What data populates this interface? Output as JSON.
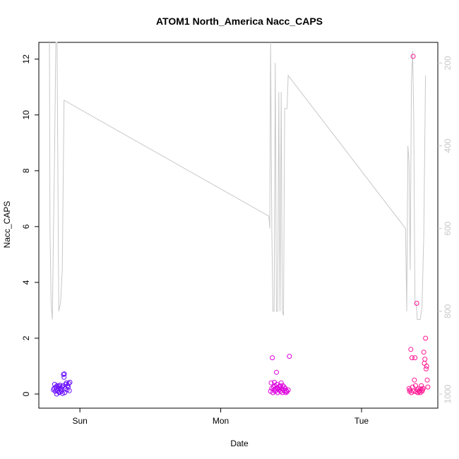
{
  "chart_data": {
    "type": "scatter",
    "title": "ATOM1 North_America Nacc_CAPS",
    "xlabel": "Date",
    "ylabel": "Nacc_CAPS",
    "x_ticks": [
      "Sun",
      "Mon",
      "Tue"
    ],
    "y_ticks": [
      "0",
      "2",
      "4",
      "6",
      "8",
      "10",
      "12"
    ],
    "y2_ticks": [
      "200",
      "400",
      "600",
      "800",
      "1000"
    ],
    "ylim": [
      0,
      12.6
    ],
    "y2lim": [
      1000,
      150
    ],
    "y2_reversed": true,
    "x_axis_hours_from_sat_midnight": [
      17,
      85
    ],
    "colors": {
      "line": "#c8c8c8",
      "axis": "#000000",
      "right_axis": "#c8c8c8"
    },
    "series": [
      {
        "values": [
          [
            19.5,
            0.15
          ],
          [
            19.6,
            0.2
          ],
          [
            19.7,
            0.35
          ],
          [
            19.8,
            0.1
          ],
          [
            19.9,
            0.25
          ],
          [
            20.0,
            0.18
          ],
          [
            20.1,
            0.3
          ],
          [
            20.2,
            0.12
          ],
          [
            20.3,
            0.22
          ],
          [
            20.4,
            0.28
          ],
          [
            20.5,
            0.05
          ],
          [
            20.6,
            0.32
          ],
          [
            20.7,
            0.15
          ],
          [
            20.8,
            0.2
          ],
          [
            20.9,
            0.1
          ],
          [
            21.0,
            0.25
          ],
          [
            21.1,
            0.3
          ],
          [
            21.2,
            0.7
          ],
          [
            21.3,
            0.6
          ],
          [
            21.35,
            0.72
          ],
          [
            21.4,
            0.05
          ],
          [
            21.5,
            0.2
          ],
          [
            21.6,
            0.35
          ],
          [
            21.7,
            0.4
          ],
          [
            21.8,
            0.15
          ],
          [
            21.9,
            0.3
          ],
          [
            22.0,
            0.25
          ],
          [
            22.1,
            0.38
          ],
          [
            22.2,
            0.12
          ],
          [
            22.3,
            0.42
          ],
          [
            20.05,
            0.0
          ],
          [
            20.45,
            0.08
          ],
          [
            21.05,
            0.02
          ]
        ],
        "color": "#6a0dff"
      },
      {
        "values": [
          [
            56.5,
            0.1
          ],
          [
            56.6,
            0.4
          ],
          [
            56.7,
            0.2
          ],
          [
            56.8,
            1.3
          ],
          [
            56.9,
            0.05
          ],
          [
            57.0,
            0.25
          ],
          [
            57.1,
            0.15
          ],
          [
            57.2,
            0.3
          ],
          [
            57.3,
            0.1
          ],
          [
            57.4,
            0.2
          ],
          [
            57.5,
            0.78
          ],
          [
            57.6,
            0.35
          ],
          [
            57.7,
            0.05
          ],
          [
            57.8,
            0.2
          ],
          [
            57.9,
            0.15
          ],
          [
            58.0,
            0.25
          ],
          [
            58.1,
            0.3
          ],
          [
            58.2,
            0.1
          ],
          [
            58.3,
            0.4
          ],
          [
            58.4,
            0.2
          ],
          [
            58.5,
            0.05
          ],
          [
            58.6,
            0.3
          ],
          [
            58.7,
            0.15
          ],
          [
            58.8,
            0.25
          ],
          [
            58.9,
            0.1
          ],
          [
            59.0,
            0.2
          ],
          [
            59.1,
            0.05
          ],
          [
            59.2,
            0.12
          ],
          [
            59.3,
            0.08
          ],
          [
            59.5,
            0.15
          ],
          [
            59.7,
            1.35
          ],
          [
            57.15,
            0.42
          ],
          [
            57.65,
            0.22
          ]
        ],
        "color": "#dd00dd"
      },
      {
        "values": [
          [
            80.1,
            0.2
          ],
          [
            80.2,
            0.1
          ],
          [
            80.3,
            0.15
          ],
          [
            80.4,
            1.6
          ],
          [
            80.5,
            0.05
          ],
          [
            80.6,
            1.3
          ],
          [
            80.7,
            0.25
          ],
          [
            80.8,
            12.1
          ],
          [
            80.9,
            0.1
          ],
          [
            81.0,
            0.5
          ],
          [
            81.1,
            1.3
          ],
          [
            81.2,
            0.3
          ],
          [
            81.3,
            0.08
          ],
          [
            81.4,
            3.25
          ],
          [
            81.5,
            0.15
          ],
          [
            81.6,
            0.05
          ],
          [
            81.7,
            0.2
          ],
          [
            81.8,
            0.1
          ],
          [
            81.9,
            0.12
          ],
          [
            82.0,
            0.05
          ],
          [
            82.1,
            0.18
          ],
          [
            82.2,
            0.3
          ],
          [
            82.3,
            0.1
          ],
          [
            82.4,
            0.15
          ],
          [
            82.5,
            0.2
          ],
          [
            82.6,
            1.5
          ],
          [
            82.7,
            1.1
          ],
          [
            82.8,
            1.25
          ],
          [
            82.9,
            2.0
          ],
          [
            83.0,
            0.9
          ],
          [
            83.1,
            1.0
          ],
          [
            83.2,
            0.5
          ],
          [
            83.3,
            0.25
          ]
        ],
        "color": "#ff1493"
      }
    ],
    "pressure_line": [
      [
        18.8,
        150
      ],
      [
        18.9,
        600
      ],
      [
        19.1,
        780
      ],
      [
        19.3,
        820
      ],
      [
        19.5,
        600
      ],
      [
        19.7,
        400
      ],
      [
        19.9,
        150
      ],
      [
        20.1,
        150
      ],
      [
        20.4,
        800
      ],
      [
        20.7,
        780
      ],
      [
        21.0,
        700
      ],
      [
        21.3,
        290
      ],
      [
        56.2,
        570
      ],
      [
        56.35,
        600
      ],
      [
        56.5,
        150
      ],
      [
        56.7,
        600
      ],
      [
        56.9,
        800
      ],
      [
        57.1,
        800
      ],
      [
        57.3,
        200
      ],
      [
        57.5,
        800
      ],
      [
        57.7,
        800
      ],
      [
        57.9,
        270
      ],
      [
        58.1,
        800
      ],
      [
        58.3,
        270
      ],
      [
        58.5,
        800
      ],
      [
        58.7,
        810
      ],
      [
        58.9,
        310
      ],
      [
        59.1,
        310
      ],
      [
        59.3,
        310
      ],
      [
        59.5,
        230
      ],
      [
        79.5,
        600
      ],
      [
        79.7,
        800
      ],
      [
        79.9,
        400
      ],
      [
        80.1,
        440
      ],
      [
        80.3,
        700
      ],
      [
        80.5,
        250
      ],
      [
        80.7,
        170
      ],
      [
        80.9,
        330
      ],
      [
        81.1,
        780
      ],
      [
        81.3,
        780
      ],
      [
        81.5,
        820
      ],
      [
        81.7,
        820
      ],
      [
        82.0,
        820
      ],
      [
        82.3,
        790
      ],
      [
        82.6,
        620
      ],
      [
        82.9,
        230
      ]
    ]
  }
}
